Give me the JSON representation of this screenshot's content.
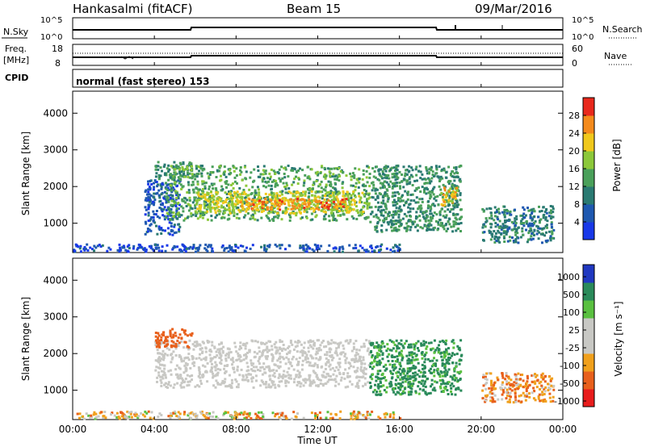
{
  "header": {
    "station": "Hankasalmi (fitACF)",
    "beam": "Beam 15",
    "date": "09/Mar/2016"
  },
  "noise_panel": {
    "left_label": "N.Sky",
    "left_ticks": [
      "10^5",
      "10^0"
    ],
    "right_ticks": [
      "10^5",
      "10^0"
    ],
    "right_label": "N.Search"
  },
  "freq_panel": {
    "left_label_1": "Freq.",
    "left_label_2": "[MHz]",
    "left_ticks": [
      "18",
      "8"
    ],
    "right_ticks": [
      "60",
      "0"
    ],
    "right_label": "Nave"
  },
  "cpid_panel": {
    "label": "CPID",
    "mode_text": "normal (fast stereo) 153"
  },
  "x_axis": {
    "ticks": [
      "00:00",
      "04:00",
      "08:00",
      "12:00",
      "16:00",
      "20:00",
      "00:00"
    ],
    "label": "Time UT"
  },
  "chart_data": [
    {
      "type": "heatmap",
      "title": "",
      "xlabel": "Time UT",
      "ylabel": "Slant Range [km]",
      "yticks": [
        "1000",
        "2000",
        "3000",
        "4000"
      ],
      "ylim": [
        200,
        4600
      ],
      "xlim_hours": [
        0,
        24
      ],
      "colorbar": {
        "label": "Power [dB]",
        "ticks": [
          "4",
          "8",
          "12",
          "16",
          "20",
          "24",
          "28"
        ],
        "range": [
          0,
          32
        ],
        "colors": [
          "#1838e8",
          "#1e58b0",
          "#2a7a72",
          "#4aa05a",
          "#8cc83a",
          "#f0c81c",
          "#f48a1c",
          "#e8281c"
        ]
      },
      "regions": [
        {
          "x": [
            3.5,
            5.2
          ],
          "y": [
            700,
            2200
          ],
          "value": 6
        },
        {
          "x": [
            4.0,
            5.8
          ],
          "y": [
            2200,
            2700
          ],
          "value": 12
        },
        {
          "x": [
            4.5,
            14.5
          ],
          "y": [
            1100,
            2600
          ],
          "value": 14
        },
        {
          "x": [
            6.0,
            14.5
          ],
          "y": [
            1300,
            1900
          ],
          "value": 20
        },
        {
          "x": [
            8.0,
            13.5
          ],
          "y": [
            1400,
            1700
          ],
          "value": 26
        },
        {
          "x": [
            14.5,
            19.0
          ],
          "y": [
            800,
            2600
          ],
          "value": 12
        },
        {
          "x": [
            18.0,
            18.8
          ],
          "y": [
            1500,
            2000
          ],
          "value": 22
        },
        {
          "x": [
            20.0,
            23.5
          ],
          "y": [
            500,
            1500
          ],
          "value": 10
        },
        {
          "x": [
            0.0,
            16.0
          ],
          "y": [
            250,
            450
          ],
          "value": 5
        }
      ]
    },
    {
      "type": "heatmap",
      "title": "",
      "xlabel": "Time UT",
      "ylabel": "Slant Range [km]",
      "yticks": [
        "1000",
        "2000",
        "3000",
        "4000"
      ],
      "ylim": [
        200,
        4600
      ],
      "xlim_hours": [
        0,
        24
      ],
      "colorbar": {
        "label": "Velocity [m s⁻¹]",
        "ticks": [
          "1000",
          "500",
          "100",
          "25",
          "-25",
          "-100",
          "-500",
          "-1000"
        ],
        "colors": [
          "#2038c0",
          "#2a8a5a",
          "#5ac040",
          "#c8c8c4",
          "#c8c8c4",
          "#f0a01c",
          "#e8601c",
          "#e81c1c"
        ]
      },
      "regions": [
        {
          "x": [
            4.0,
            14.5
          ],
          "y": [
            1100,
            2400
          ],
          "value": "ground-scatter"
        },
        {
          "x": [
            4.0,
            5.8
          ],
          "y": [
            2200,
            2700
          ],
          "value": -300
        },
        {
          "x": [
            14.5,
            19.0
          ],
          "y": [
            900,
            2400
          ],
          "value": 150
        },
        {
          "x": [
            20.0,
            23.5
          ],
          "y": [
            700,
            1500
          ],
          "value": -80
        },
        {
          "x": [
            0.0,
            16.0
          ],
          "y": [
            250,
            450
          ],
          "value": -50
        }
      ]
    }
  ]
}
